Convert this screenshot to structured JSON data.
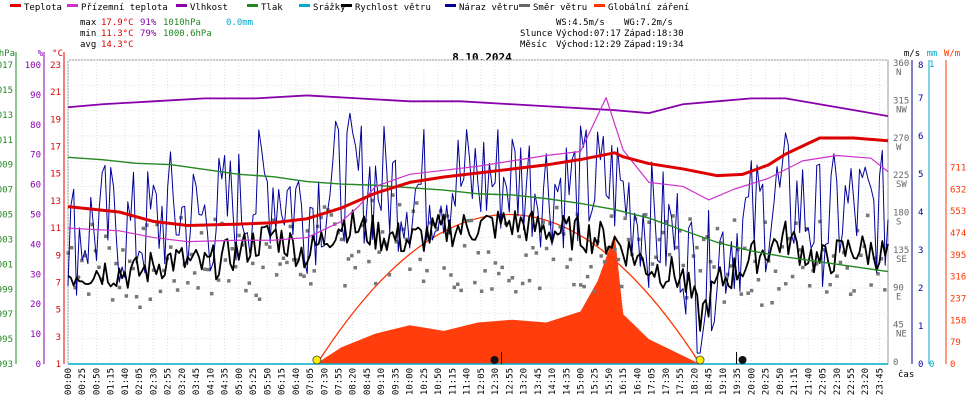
{
  "title": "8.10.2024",
  "legend": [
    {
      "label": "Teplota",
      "color": "#dd0000"
    },
    {
      "label": "Přízemní teplota",
      "color": "#cc33cc"
    },
    {
      "label": "Vlhkost",
      "color": "#8800aa"
    },
    {
      "label": "Tlak",
      "color": "#228822"
    },
    {
      "label": "Srážky",
      "color": "#00aacc"
    },
    {
      "label": "Rychlost větru",
      "color": "#000000"
    },
    {
      "label": "Náraz větru",
      "color": "#000099"
    },
    {
      "label": "Směr větru",
      "color": "#666666"
    },
    {
      "label": "Globální záření",
      "color": "#ff3300"
    }
  ],
  "stats": {
    "max": {
      "label": "max",
      "temp": "17.9°C",
      "hum": "91%",
      "press": "1010hPa",
      "rain": "0.0mm"
    },
    "min": {
      "label": "min",
      "temp": "11.3°C",
      "hum": "79%",
      "press": "1000.6hPa"
    },
    "avg": {
      "label": "avg",
      "temp": "14.3°C"
    }
  },
  "wind_info": {
    "ws": "WS:4.5m/s",
    "wg": "WG:7.2m/s"
  },
  "sun_info": {
    "label": "Slunce",
    "rise": "Východ:07:17",
    "set": "Západ:18:30"
  },
  "moon_info": {
    "label": "Měsíc",
    "rise": "Východ:12:29",
    "set": "Západ:19:34"
  },
  "axis_units": {
    "hpa": "hPa",
    "pct": "%",
    "degc": "°C",
    "ms": "m/s",
    "mm": "mm",
    "wm": "W/m",
    "time": "čas"
  },
  "axes": {
    "hpa_ticks": [
      "1017",
      "1015",
      "1013",
      "1011",
      "1009",
      "1007",
      "1005",
      "1003",
      "1001",
      "999",
      "997",
      "995",
      "993"
    ],
    "pct_ticks": [
      "100",
      "90",
      "80",
      "70",
      "60",
      "50",
      "40",
      "30",
      "20",
      "10",
      "0"
    ],
    "degc_ticks": [
      "23",
      "21",
      "19",
      "17",
      "15",
      "13",
      "11",
      "9",
      "7",
      "5",
      "3",
      "1"
    ],
    "dir_ticks": [
      "360\nN",
      "315\nNW",
      "270\nW",
      "225\nSW",
      "180\nS",
      "135\nSE",
      "90\nE",
      "45\nNE",
      "0"
    ],
    "ms_ticks": [
      "8",
      "7",
      "6",
      "5",
      "4",
      "3",
      "2",
      "1",
      "0"
    ],
    "mm_ticks": [
      "1",
      "0"
    ],
    "wm_ticks": [
      "711",
      "632",
      "553",
      "474",
      "395",
      "316",
      "237",
      "158",
      "79",
      "0"
    ],
    "time_ticks": [
      "00:00",
      "00:25",
      "00:50",
      "01:15",
      "01:40",
      "02:05",
      "02:30",
      "02:55",
      "03:20",
      "03:45",
      "04:10",
      "04:35",
      "05:00",
      "05:25",
      "05:50",
      "06:15",
      "06:40",
      "07:05",
      "07:30",
      "07:55",
      "08:20",
      "08:45",
      "09:10",
      "09:35",
      "10:00",
      "10:25",
      "10:50",
      "11:15",
      "11:40",
      "12:05",
      "12:30",
      "12:55",
      "13:20",
      "13:45",
      "14:10",
      "14:35",
      "15:00",
      "15:25",
      "15:50",
      "16:15",
      "16:40",
      "17:05",
      "17:30",
      "17:55",
      "18:20",
      "18:45",
      "19:10",
      "19:35",
      "20:00",
      "20:25",
      "20:50",
      "21:15",
      "21:40",
      "22:05",
      "22:30",
      "22:55",
      "23:20",
      "23:45"
    ]
  },
  "chart_data": {
    "type": "line",
    "title": "8.10.2024",
    "x_label": "čas",
    "x_range": [
      "00:00",
      "24:00"
    ],
    "grid": true,
    "series": [
      {
        "name": "Teplota",
        "unit": "°C",
        "color": "#dd0000",
        "x": [
          "00:00",
          "01:30",
          "02:30",
          "03:30",
          "05:00",
          "06:00",
          "07:00",
          "08:00",
          "09:00",
          "10:00",
          "11:00",
          "12:00",
          "13:00",
          "14:00",
          "15:00",
          "16:00",
          "16:15",
          "17:00",
          "18:00",
          "19:00",
          "19:45",
          "20:30",
          "21:00",
          "22:00",
          "23:00",
          "24:00"
        ],
        "y": [
          12.7,
          12.3,
          11.6,
          11.3,
          11.4,
          11.5,
          11.8,
          12.6,
          13.7,
          14.5,
          14.9,
          15.2,
          15.5,
          15.8,
          16.2,
          16.7,
          16.4,
          15.9,
          15.5,
          15.0,
          15.1,
          15.8,
          16.6,
          17.8,
          17.8,
          17.6
        ]
      },
      {
        "name": "Přízemní teplota",
        "unit": "°C",
        "color": "#cc33cc",
        "x": [
          "00:00",
          "01:30",
          "02:30",
          "03:30",
          "05:00",
          "06:00",
          "07:00",
          "08:00",
          "08:30",
          "09:00",
          "10:00",
          "11:00",
          "12:00",
          "13:00",
          "14:00",
          "15:00",
          "15:45",
          "16:15",
          "17:00",
          "18:00",
          "18:45",
          "19:30",
          "20:30",
          "21:30",
          "22:30",
          "23:30",
          "24:00"
        ],
        "y": [
          11.1,
          10.9,
          10.4,
          10.1,
          10.2,
          10.2,
          10.4,
          11.6,
          12.7,
          14.2,
          15.1,
          15.4,
          15.7,
          16.1,
          16.5,
          16.8,
          20.8,
          16.9,
          14.5,
          14.2,
          13.2,
          14.0,
          14.8,
          16.1,
          16.5,
          16.3,
          15.3
        ]
      },
      {
        "name": "Vlhkost",
        "unit": "%",
        "color": "#8800aa",
        "x": [
          "00:00",
          "01:00",
          "02:30",
          "04:00",
          "05:30",
          "07:00",
          "08:30",
          "10:00",
          "11:30",
          "13:00",
          "14:30",
          "16:00",
          "17:00",
          "18:00",
          "19:00",
          "20:00",
          "21:00",
          "22:00",
          "23:00",
          "24:00"
        ],
        "y": [
          87,
          88,
          89,
          90,
          90,
          91,
          90,
          89,
          89,
          88,
          87,
          86,
          85,
          88,
          89,
          90,
          90,
          88,
          86,
          84
        ]
      },
      {
        "name": "Tlak",
        "unit": "hPa",
        "color": "#228822",
        "x": [
          "00:00",
          "01:00",
          "02:00",
          "03:00",
          "04:00",
          "05:00",
          "06:00",
          "07:00",
          "08:00",
          "09:00",
          "10:00",
          "11:00",
          "12:00",
          "13:00",
          "14:00",
          "15:00",
          "16:00",
          "17:00",
          "18:00",
          "19:00",
          "20:00",
          "21:00",
          "22:00",
          "23:00",
          "24:00"
        ],
        "y": [
          1010.0,
          1009.8,
          1009.5,
          1009.4,
          1009.0,
          1008.6,
          1008.4,
          1008.0,
          1007.8,
          1007.7,
          1007.5,
          1007.3,
          1007.0,
          1006.9,
          1006.6,
          1006.2,
          1005.7,
          1005.0,
          1004.0,
          1003.0,
          1002.3,
          1001.8,
          1001.4,
          1001.0,
          1000.6
        ]
      },
      {
        "name": "Srážky",
        "unit": "mm",
        "color": "#00aacc",
        "x": [
          "00:00",
          "24:00"
        ],
        "y": [
          0,
          0
        ]
      },
      {
        "name": "Rychlost větru",
        "unit": "m/s",
        "color": "#000000",
        "x": [
          "00:00",
          "01:00",
          "02:00",
          "03:00",
          "04:00",
          "05:00",
          "06:00",
          "07:00",
          "08:00",
          "09:00",
          "10:00",
          "11:00",
          "12:00",
          "13:00",
          "14:00",
          "15:00",
          "16:00",
          "17:00",
          "18:00",
          "18:30",
          "19:00",
          "20:00",
          "21:00",
          "22:00",
          "23:00",
          "24:00"
        ],
        "y": [
          2.5,
          2.6,
          2.5,
          2.9,
          2.7,
          3.1,
          3.6,
          3.0,
          3.9,
          3.6,
          3.4,
          3.7,
          3.8,
          3.9,
          3.7,
          3.6,
          3.4,
          2.7,
          2.4,
          1.3,
          2.2,
          2.9,
          3.5,
          2.8,
          3.2,
          3.0
        ]
      },
      {
        "name": "Náraz větru",
        "unit": "m/s",
        "color": "#000099",
        "x": [
          "00:00",
          "01:00",
          "02:00",
          "03:00",
          "04:00",
          "05:00",
          "06:00",
          "07:00",
          "08:00",
          "09:00",
          "10:00",
          "11:00",
          "12:00",
          "13:00",
          "14:00",
          "15:00",
          "16:00",
          "17:00",
          "18:00",
          "18:30",
          "19:00",
          "20:00",
          "21:00",
          "22:00",
          "23:00",
          "24:00"
        ],
        "y": [
          3.5,
          3.9,
          3.6,
          4.2,
          4.0,
          4.4,
          5.0,
          4.3,
          5.2,
          5.0,
          4.8,
          5.0,
          5.1,
          5.2,
          5.0,
          4.9,
          5.0,
          3.9,
          3.4,
          1.8,
          3.1,
          4.0,
          4.7,
          3.9,
          4.3,
          4.1
        ]
      },
      {
        "name": "Směr větru",
        "unit": "°",
        "color": "#666666",
        "x": [
          "00:00",
          "02:00",
          "04:00",
          "06:00",
          "08:00",
          "10:00",
          "12:00",
          "14:00",
          "16:00",
          "18:00",
          "20:00",
          "22:00",
          "24:00"
        ],
        "y": [
          140,
          120,
          135,
          130,
          150,
          160,
          140,
          150,
          140,
          130,
          125,
          135,
          145
        ]
      },
      {
        "name": "Globální záření",
        "unit": "W/m²",
        "color": "#ff3300",
        "x": [
          "07:15",
          "08:00",
          "09:00",
          "10:00",
          "11:00",
          "12:00",
          "13:00",
          "14:00",
          "15:00",
          "15:30",
          "16:00",
          "16:15",
          "17:00",
          "18:00",
          "18:30"
        ],
        "y": [
          0,
          60,
          110,
          140,
          120,
          150,
          160,
          150,
          190,
          300,
          470,
          180,
          90,
          30,
          0
        ]
      }
    ]
  }
}
